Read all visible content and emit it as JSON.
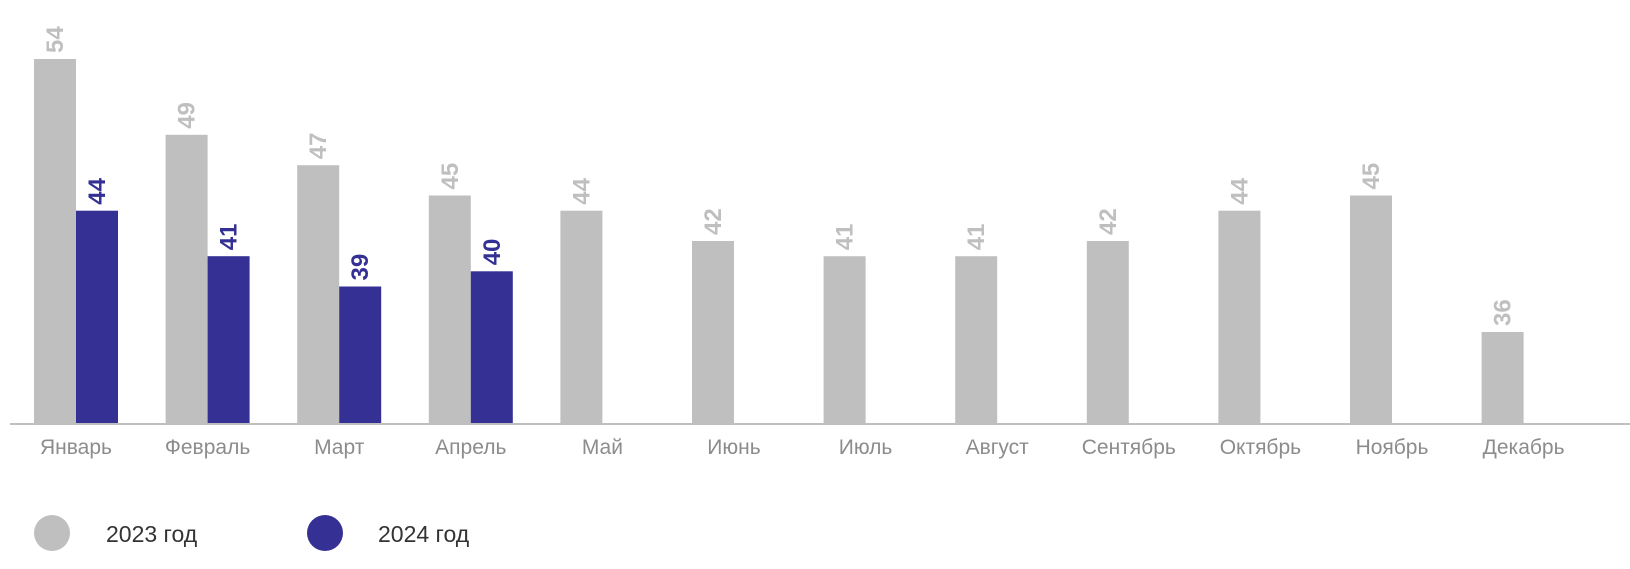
{
  "chart_data": {
    "type": "bar",
    "categories": [
      "Январь",
      "Февраль",
      "Март",
      "Апрель",
      "Май",
      "Июнь",
      "Июль",
      "Август",
      "Сентябрь",
      "Октябрь",
      "Ноябрь",
      "Декабрь"
    ],
    "series": [
      {
        "name": "2023 год",
        "color": "#bfbfbf",
        "label_color": "#bfbfbf",
        "values": [
          54,
          49,
          47,
          45,
          44,
          42,
          41,
          41,
          42,
          44,
          45,
          36
        ]
      },
      {
        "name": "2024 год",
        "color": "#353093",
        "label_color": "#353093",
        "values": [
          44,
          41,
          39,
          40,
          null,
          null,
          null,
          null,
          null,
          null,
          null,
          null
        ]
      }
    ],
    "ylim": [
      30,
      54
    ],
    "grid": false,
    "legend_position": "bottom-left",
    "data_labels": "rotated vertical above bars"
  }
}
